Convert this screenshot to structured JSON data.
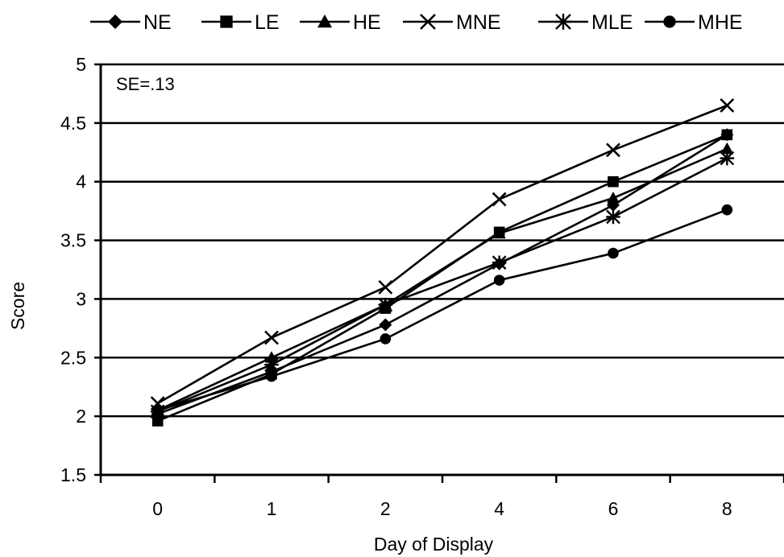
{
  "chart_data": {
    "type": "line",
    "categories": [
      "0",
      "1",
      "2",
      "4",
      "6",
      "8"
    ],
    "xlabel": "Day of Display",
    "ylabel": "Score",
    "ylim": [
      1.5,
      5
    ],
    "yticks": [
      "1.5",
      "2",
      "2.5",
      "3",
      "3.5",
      "4",
      "4.5",
      "5"
    ],
    "grid": true,
    "legend_position": "top",
    "annotation": "SE=.13",
    "series": [
      {
        "name": "NE",
        "marker": "diamond",
        "values": [
          2.02,
          2.38,
          2.78,
          3.3,
          3.8,
          4.4
        ]
      },
      {
        "name": "LE",
        "marker": "square",
        "values": [
          1.96,
          2.36,
          2.92,
          3.57,
          4.0,
          4.4
        ]
      },
      {
        "name": "HE",
        "marker": "triangle",
        "values": [
          2.05,
          2.5,
          2.95,
          3.56,
          3.86,
          4.28
        ]
      },
      {
        "name": "MNE",
        "marker": "x",
        "values": [
          2.11,
          2.67,
          3.1,
          3.85,
          4.27,
          4.65
        ]
      },
      {
        "name": "MLE",
        "marker": "asterisk",
        "values": [
          2.04,
          2.44,
          2.95,
          3.31,
          3.7,
          4.2
        ]
      },
      {
        "name": "MHE",
        "marker": "circle",
        "values": [
          2.05,
          2.34,
          2.66,
          3.16,
          3.39,
          3.76
        ]
      }
    ]
  }
}
